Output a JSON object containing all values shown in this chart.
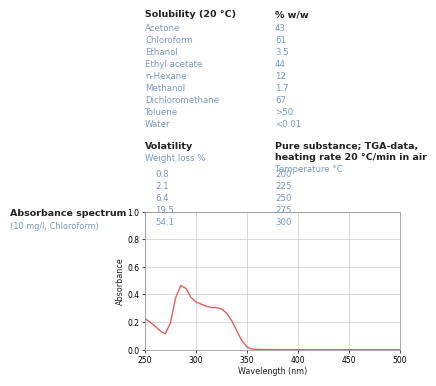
{
  "solubility_header": "Solubility (20 °C)",
  "solubility_col2_header": "% w/w",
  "solubility_solvents": [
    "Acetone",
    "Chloroform",
    "Ethanol",
    "Ethyl acetate",
    "n-Hexane",
    "Methanol",
    "Dichloromethane",
    "Toluene",
    "Water"
  ],
  "solubility_values": [
    "43",
    "61",
    "3.5",
    "44",
    "12",
    "1.7",
    "67",
    ">50",
    "<0.01"
  ],
  "volatility_header": "Volatility",
  "volatility_col1_header": "Weight loss %",
  "volatility_col2_header_line1": "Pure substance; TGA-data,",
  "volatility_col2_header_line2": "heating rate 20 °C/min in air",
  "volatility_col3_subheader": "Temperature °C",
  "volatility_weight": [
    "0.8",
    "2.1",
    "6.4",
    "19.5",
    "54.1"
  ],
  "volatility_temp": [
    "200",
    "225",
    "250",
    "275",
    "300"
  ],
  "absorbance_label": "Absorbance spectrum",
  "absorbance_sublabel": "(10 mg/l, Chloroform)",
  "text_color": "#7a9abf",
  "header_color": "#222222",
  "bg_color": "#ffffff",
  "curve_color": "#e06060",
  "wavelength": [
    250,
    255,
    260,
    265,
    270,
    275,
    280,
    285,
    290,
    295,
    300,
    305,
    310,
    315,
    320,
    325,
    330,
    335,
    340,
    345,
    350,
    352,
    355,
    360,
    365,
    370,
    375,
    380,
    390,
    400,
    450,
    500
  ],
  "absorbance": [
    0.225,
    0.2,
    0.17,
    0.135,
    0.115,
    0.195,
    0.375,
    0.465,
    0.445,
    0.38,
    0.345,
    0.33,
    0.315,
    0.305,
    0.305,
    0.295,
    0.265,
    0.21,
    0.135,
    0.065,
    0.02,
    0.01,
    0.005,
    0.002,
    0.001,
    0.001,
    0.0005,
    0.0,
    0.0,
    0.0,
    0.0,
    0.0
  ],
  "xlim": [
    250,
    500
  ],
  "ylim": [
    0,
    1
  ],
  "xticks": [
    250,
    300,
    350,
    400,
    450,
    500
  ],
  "yticks": [
    0,
    0.2,
    0.4,
    0.6,
    0.8,
    1.0
  ]
}
